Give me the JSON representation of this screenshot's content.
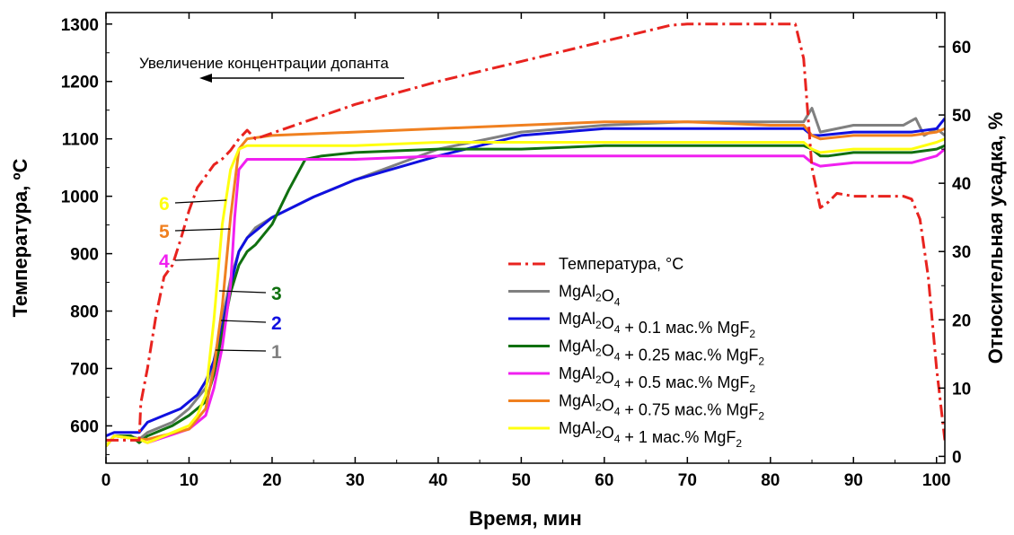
{
  "chart_data": {
    "type": "line",
    "xlabel": "Время, мин",
    "ylabel_left": "Температура, ºС",
    "ylabel_right": "Относительная усадка, %",
    "xlim": [
      0,
      101
    ],
    "ylim_left": [
      535,
      1320
    ],
    "ylim_right": [
      -1,
      65
    ],
    "x_ticks": [
      0,
      10,
      20,
      30,
      40,
      50,
      60,
      70,
      80,
      90,
      100
    ],
    "y_left_ticks": [
      600,
      700,
      800,
      900,
      1000,
      1100,
      1200,
      1300
    ],
    "y_right_ticks": [
      0,
      10,
      20,
      30,
      40,
      50,
      60
    ],
    "grid": false,
    "legend_position": "lower-right",
    "annotation": "Увеличение концентрации допанта",
    "temperature": {
      "name": "Температура, °С",
      "color": "#e8231f",
      "x": [
        0,
        4,
        4.2,
        5,
        6,
        7,
        8,
        9,
        10,
        11,
        12,
        13,
        14,
        15,
        16,
        17,
        18,
        20,
        30,
        40,
        50,
        60,
        68,
        70,
        80,
        83,
        84,
        85,
        86,
        87,
        88,
        90,
        96,
        97,
        98,
        99,
        100,
        101
      ],
      "y": [
        575,
        575,
        640,
        700,
        790,
        860,
        880,
        925,
        975,
        1015,
        1035,
        1055,
        1065,
        1080,
        1100,
        1115,
        1100,
        1110,
        1160,
        1200,
        1235,
        1270,
        1298,
        1300,
        1300,
        1300,
        1240,
        1050,
        980,
        990,
        1005,
        1000,
        1000,
        995,
        960,
        860,
        700,
        575
      ]
    },
    "series": [
      {
        "name": "MgAl",
        "sub1": "2",
        "mid": "O",
        "sub2": "4",
        "dop": "",
        "color": "#808080",
        "label": "1",
        "x": [
          0,
          1,
          3,
          4,
          5,
          8,
          10,
          12,
          13,
          14,
          15,
          16,
          17,
          18,
          20,
          25,
          30,
          40,
          50,
          60,
          70,
          80,
          84,
          85,
          86,
          90,
          96,
          97.5,
          98.5,
          100,
          101
        ],
        "y": [
          1.5,
          3,
          3,
          2.5,
          3.5,
          5,
          7,
          10,
          14,
          20,
          26,
          30,
          32,
          33.5,
          35,
          38,
          40.5,
          45,
          47.5,
          48.5,
          49,
          49,
          49,
          51,
          47.5,
          48.5,
          48.5,
          49.5,
          47,
          48,
          47
        ]
      },
      {
        "name": "MgAl",
        "sub1": "2",
        "mid": "O",
        "sub2": "4",
        "dop": " + 0.1 мас.% MgF",
        "color": "#1010e0",
        "label": "2",
        "x": [
          0,
          1,
          4,
          5,
          7,
          9,
          11,
          12,
          13,
          14,
          15,
          16,
          17,
          18,
          20,
          25,
          30,
          40,
          50,
          60,
          70,
          80,
          84,
          85,
          86,
          90,
          97,
          100,
          101
        ],
        "y": [
          3,
          3.5,
          3.5,
          5,
          6,
          7,
          9,
          11,
          14,
          19,
          25,
          30,
          32,
          33,
          35,
          38,
          40.5,
          44,
          47,
          48,
          48,
          48,
          48,
          47,
          47,
          47.5,
          47.5,
          48,
          49.5
        ]
      },
      {
        "name": "MgAl",
        "sub1": "2",
        "mid": "O",
        "sub2": "4",
        "dop": " + 0.25 мас.% MgF",
        "color": "#107010",
        "label": "3",
        "x": [
          0,
          1,
          3,
          4,
          5,
          8,
          10,
          12,
          13,
          14,
          15,
          16,
          17,
          18,
          20,
          22,
          24,
          26,
          30,
          40,
          50,
          60,
          70,
          80,
          84,
          85,
          86,
          87,
          90,
          97,
          100,
          101
        ],
        "y": [
          1.5,
          3,
          3,
          2,
          3,
          4.5,
          6,
          8,
          12,
          18,
          24,
          28,
          30,
          31,
          34,
          39,
          43.5,
          44,
          44.5,
          45,
          45,
          45.5,
          45.5,
          45.5,
          45.5,
          45,
          44,
          44,
          44.5,
          44.5,
          45,
          45.5
        ]
      },
      {
        "name": "MgAl",
        "sub1": "2",
        "mid": "O",
        "sub2": "4",
        "dop": " + 0.5 мас.% MgF",
        "color": "#f020f0",
        "label": "4",
        "x": [
          0,
          1,
          4,
          5,
          10,
          12,
          13,
          14,
          15,
          15.5,
          16,
          17,
          20,
          30,
          40,
          50,
          60,
          70,
          80,
          84,
          85,
          86,
          90,
          97,
          100,
          101
        ],
        "y": [
          1.5,
          3,
          2.5,
          2,
          4,
          6,
          10,
          16,
          25,
          35,
          42,
          43.5,
          43.5,
          43.5,
          44,
          44,
          44,
          44,
          44,
          44,
          43,
          42.5,
          43,
          43,
          44,
          45
        ]
      },
      {
        "name": "MgAl",
        "sub1": "2",
        "mid": "O",
        "sub2": "4",
        "dop": " + 0.75 мас.% MgF",
        "color": "#f08020",
        "label": "5",
        "x": [
          0,
          1,
          4,
          5,
          10,
          12,
          13,
          14,
          15,
          16,
          17,
          20,
          30,
          40,
          50,
          60,
          70,
          80,
          84,
          85,
          86,
          90,
          97,
          100,
          101
        ],
        "y": [
          1.5,
          3,
          2.5,
          2.5,
          4,
          7,
          13,
          22,
          35,
          45,
          46.5,
          47,
          47.5,
          48,
          48.5,
          49,
          49,
          48.5,
          48.5,
          47,
          46.5,
          47,
          47,
          47.5,
          48
        ]
      },
      {
        "name": "MgAl",
        "sub1": "2",
        "mid": "O",
        "sub2": "4",
        "dop": " + 1 мас.% MgF",
        "color": "#ffff10",
        "label": "6",
        "x": [
          0,
          1,
          4,
          5,
          10,
          11,
          12,
          13,
          14,
          15,
          16,
          17,
          20,
          30,
          40,
          50,
          60,
          70,
          80,
          84,
          85,
          86,
          90,
          97,
          100,
          101
        ],
        "y": [
          1.5,
          3,
          2.5,
          2,
          4.5,
          6,
          9,
          20,
          34,
          42,
          45,
          45.5,
          45.5,
          45.5,
          46,
          46,
          46,
          46,
          46,
          46,
          45,
          44.5,
          45,
          45,
          46,
          46.5
        ]
      }
    ]
  }
}
